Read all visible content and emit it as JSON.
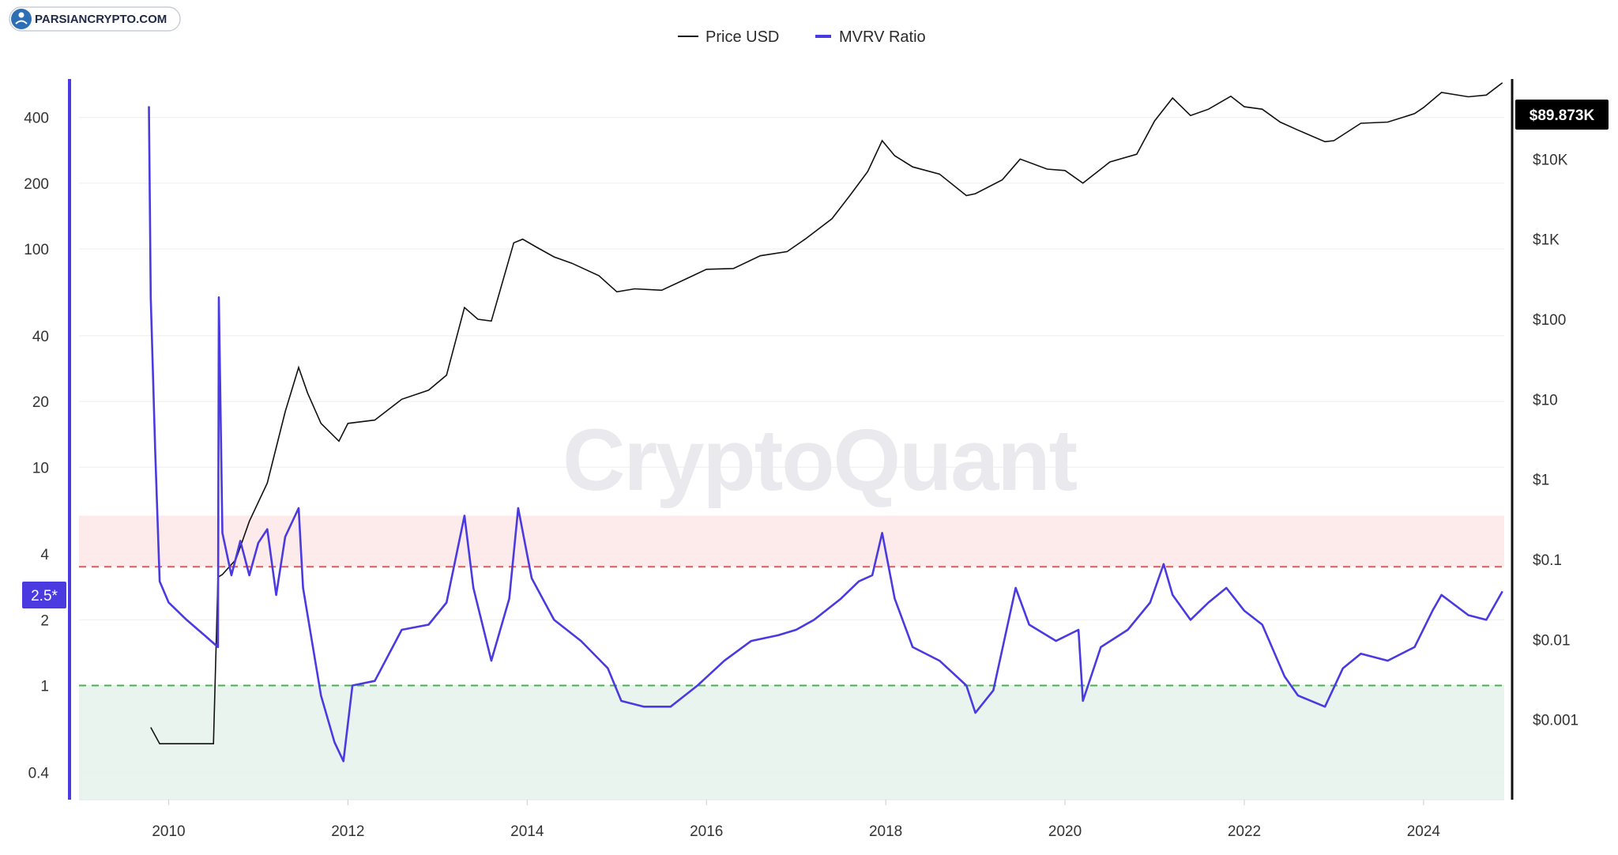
{
  "brand": {
    "name": "PARSIANCRYPTO.COM"
  },
  "watermark": "CryptoQuant",
  "colors": {
    "price": "#111111",
    "mvrv": "#4a3ae0",
    "overvalued_band": "#fdeaea",
    "undervalued_band": "#eaf4ee",
    "red_line": "#e05a5a",
    "green_line": "#4caf50"
  },
  "chart_data": {
    "type": "line",
    "title": "",
    "legend": {
      "position": "top-center",
      "items": [
        "Price USD",
        "MVRV Ratio"
      ]
    },
    "x_ticks": [
      "2010",
      "2012",
      "2014",
      "2016",
      "2018",
      "2020",
      "2022",
      "2024"
    ],
    "x_range": [
      2009.0,
      2024.9
    ],
    "left_axis": {
      "scale": "log",
      "ticks": [
        "400",
        "200",
        "100",
        "40",
        "20",
        "10",
        "4",
        "2",
        "1",
        "0.4"
      ],
      "range": [
        0.3,
        600
      ],
      "marker_label": "2.5*"
    },
    "right_axis": {
      "scale": "log",
      "ticks": [
        "$10K",
        "$1K",
        "$100",
        "$10",
        "$1",
        "$0.1",
        "$0.01",
        "$0.001"
      ],
      "range": [
        0.0001,
        100000
      ],
      "current_label": "$89.873K"
    },
    "reference_lines": [
      {
        "y": 3.5,
        "style": "dashed",
        "color": "red"
      },
      {
        "y": 1.0,
        "style": "dashed",
        "color": "green"
      }
    ],
    "bands": [
      {
        "from": 3.5,
        "to": 6.0,
        "color": "overvalued_band"
      },
      {
        "from": 0.3,
        "to": 1.0,
        "color": "undervalued_band"
      }
    ],
    "grid": true,
    "series": [
      {
        "name": "Price USD",
        "axis": "right",
        "x": [
          2009.8,
          2009.9,
          2010.0,
          2010.5,
          2010.55,
          2010.6,
          2010.75,
          2010.9,
          2011.1,
          2011.3,
          2011.45,
          2011.55,
          2011.7,
          2011.9,
          2012.0,
          2012.3,
          2012.6,
          2012.9,
          2013.1,
          2013.3,
          2013.45,
          2013.6,
          2013.85,
          2013.95,
          2014.1,
          2014.3,
          2014.5,
          2014.8,
          2015.0,
          2015.2,
          2015.5,
          2015.8,
          2016.0,
          2016.3,
          2016.6,
          2016.9,
          2017.1,
          2017.4,
          2017.6,
          2017.8,
          2017.96,
          2018.1,
          2018.3,
          2018.6,
          2018.9,
          2019.0,
          2019.3,
          2019.5,
          2019.8,
          2020.0,
          2020.2,
          2020.5,
          2020.8,
          2021.0,
          2021.2,
          2021.4,
          2021.6,
          2021.85,
          2022.0,
          2022.2,
          2022.4,
          2022.6,
          2022.9,
          2023.0,
          2023.3,
          2023.6,
          2023.9,
          2024.0,
          2024.2,
          2024.5,
          2024.7,
          2024.88
        ],
        "values": [
          0.0008,
          0.0005,
          0.0005,
          0.0005,
          0.06,
          0.065,
          0.1,
          0.3,
          0.9,
          7,
          25,
          12,
          5,
          3,
          5,
          5.5,
          10,
          13,
          20,
          140,
          100,
          95,
          900,
          1000,
          800,
          600,
          500,
          350,
          220,
          240,
          230,
          330,
          420,
          430,
          620,
          700,
          1000,
          1800,
          3500,
          7000,
          17000,
          11000,
          8000,
          6500,
          3500,
          3700,
          5500,
          10000,
          7500,
          7200,
          5000,
          9200,
          11500,
          30000,
          58000,
          35000,
          42000,
          61000,
          45000,
          42000,
          29000,
          23000,
          16500,
          17000,
          28000,
          29000,
          37000,
          44000,
          68000,
          60000,
          63000,
          89873
        ]
      },
      {
        "name": "MVRV Ratio",
        "axis": "left",
        "x": [
          2009.78,
          2009.8,
          2009.85,
          2009.9,
          2010.0,
          2010.2,
          2010.4,
          2010.55,
          2010.56,
          2010.6,
          2010.7,
          2010.8,
          2010.9,
          2011.0,
          2011.1,
          2011.2,
          2011.3,
          2011.45,
          2011.5,
          2011.7,
          2011.85,
          2011.95,
          2012.05,
          2012.3,
          2012.6,
          2012.9,
          2013.1,
          2013.3,
          2013.4,
          2013.6,
          2013.8,
          2013.9,
          2014.05,
          2014.3,
          2014.6,
          2014.9,
          2015.05,
          2015.3,
          2015.6,
          2015.9,
          2016.2,
          2016.5,
          2016.8,
          2017.0,
          2017.2,
          2017.5,
          2017.7,
          2017.85,
          2017.96,
          2018.1,
          2018.3,
          2018.6,
          2018.9,
          2019.0,
          2019.2,
          2019.45,
          2019.6,
          2019.9,
          2020.15,
          2020.2,
          2020.4,
          2020.7,
          2020.95,
          2021.1,
          2021.2,
          2021.4,
          2021.6,
          2021.8,
          2022.0,
          2022.2,
          2022.45,
          2022.6,
          2022.9,
          2023.1,
          2023.3,
          2023.6,
          2023.9,
          2024.1,
          2024.2,
          2024.5,
          2024.7,
          2024.88
        ],
        "values": [
          450,
          60,
          12,
          3.0,
          2.4,
          2.0,
          1.7,
          1.5,
          60,
          5,
          3.2,
          4.6,
          3.2,
          4.5,
          5.2,
          2.6,
          4.8,
          6.5,
          2.8,
          0.9,
          0.55,
          0.45,
          1.0,
          1.05,
          1.8,
          1.9,
          2.4,
          6.0,
          2.8,
          1.3,
          2.5,
          6.5,
          3.1,
          2.0,
          1.6,
          1.2,
          0.85,
          0.8,
          0.8,
          1.0,
          1.3,
          1.6,
          1.7,
          1.8,
          2.0,
          2.5,
          3.0,
          3.2,
          5.0,
          2.5,
          1.5,
          1.3,
          1.0,
          0.75,
          0.95,
          2.8,
          1.9,
          1.6,
          1.8,
          0.85,
          1.5,
          1.8,
          2.4,
          3.6,
          2.6,
          2.0,
          2.4,
          2.8,
          2.2,
          1.9,
          1.1,
          0.9,
          0.8,
          1.2,
          1.4,
          1.3,
          1.5,
          2.2,
          2.6,
          2.1,
          2.0,
          2.7
        ]
      }
    ]
  }
}
